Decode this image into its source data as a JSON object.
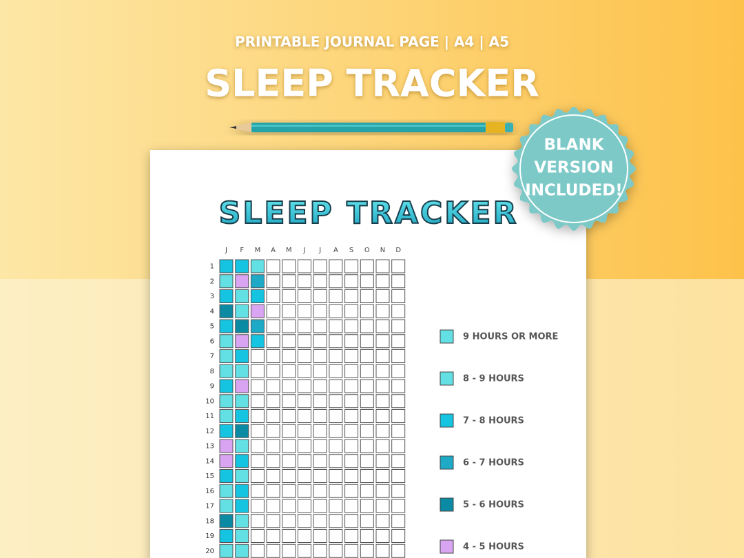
{
  "header": {
    "subtitle": "PRINTABLE JOURNAL PAGE | A4 | A5",
    "title": "SLEEP TRACKER"
  },
  "badge": {
    "lines": [
      "BLANK",
      "VERSION",
      "INCLUDED!"
    ]
  },
  "page": {
    "title": "SLEEP TRACKER",
    "months": [
      "J",
      "F",
      "M",
      "A",
      "M",
      "J",
      "J",
      "A",
      "S",
      "O",
      "N",
      "D"
    ],
    "days": [
      "1",
      "2",
      "3",
      "4",
      "5",
      "6",
      "7",
      "8",
      "9",
      "10",
      "11",
      "12",
      "13",
      "14",
      "15",
      "16",
      "17",
      "18",
      "19",
      "20"
    ],
    "legend": [
      {
        "label": "9 HOURS OR MORE",
        "color": "#62e0e4"
      },
      {
        "label": "8 - 9 HOURS",
        "color": "#62e0e4"
      },
      {
        "label": "7 - 8 HOURS",
        "color": "#14c4e0"
      },
      {
        "label": "6 - 7 HOURS",
        "color": "#1ea9c7"
      },
      {
        "label": "5 - 6 HOURS",
        "color": "#0b8aa3"
      },
      {
        "label": "4 - 5 HOURS",
        "color": "#d9a4f2"
      }
    ],
    "cells": [
      [
        "#14c4e0",
        "#14c4e0",
        "#62e0e4",
        null,
        null,
        null,
        null,
        null,
        null,
        null,
        null,
        null
      ],
      [
        "#62e0e4",
        "#d9a4f2",
        "#1ea9c7",
        null,
        null,
        null,
        null,
        null,
        null,
        null,
        null,
        null
      ],
      [
        "#14c4e0",
        "#62e0e4",
        "#14c4e0",
        null,
        null,
        null,
        null,
        null,
        null,
        null,
        null,
        null
      ],
      [
        "#0b8aa3",
        "#62e0e4",
        "#d9a4f2",
        null,
        null,
        null,
        null,
        null,
        null,
        null,
        null,
        null
      ],
      [
        "#14c4e0",
        "#0b8aa3",
        "#1ea9c7",
        null,
        null,
        null,
        null,
        null,
        null,
        null,
        null,
        null
      ],
      [
        "#62e0e4",
        "#d9a4f2",
        "#14c4e0",
        null,
        null,
        null,
        null,
        null,
        null,
        null,
        null,
        null
      ],
      [
        "#62e0e4",
        "#14c4e0",
        null,
        null,
        null,
        null,
        null,
        null,
        null,
        null,
        null,
        null
      ],
      [
        "#62e0e4",
        "#62e0e4",
        null,
        null,
        null,
        null,
        null,
        null,
        null,
        null,
        null,
        null
      ],
      [
        "#14c4e0",
        "#d9a4f2",
        null,
        null,
        null,
        null,
        null,
        null,
        null,
        null,
        null,
        null
      ],
      [
        "#62e0e4",
        "#62e0e4",
        null,
        null,
        null,
        null,
        null,
        null,
        null,
        null,
        null,
        null
      ],
      [
        "#62e0e4",
        "#14c4e0",
        null,
        null,
        null,
        null,
        null,
        null,
        null,
        null,
        null,
        null
      ],
      [
        "#14c4e0",
        "#0b8aa3",
        null,
        null,
        null,
        null,
        null,
        null,
        null,
        null,
        null,
        null
      ],
      [
        "#d9a4f2",
        "#62e0e4",
        null,
        null,
        null,
        null,
        null,
        null,
        null,
        null,
        null,
        null
      ],
      [
        "#d9a4f2",
        "#14c4e0",
        null,
        null,
        null,
        null,
        null,
        null,
        null,
        null,
        null,
        null
      ],
      [
        "#14c4e0",
        "#62e0e4",
        null,
        null,
        null,
        null,
        null,
        null,
        null,
        null,
        null,
        null
      ],
      [
        "#62e0e4",
        "#14c4e0",
        null,
        null,
        null,
        null,
        null,
        null,
        null,
        null,
        null,
        null
      ],
      [
        "#62e0e4",
        "#14c4e0",
        null,
        null,
        null,
        null,
        null,
        null,
        null,
        null,
        null,
        null
      ],
      [
        "#0b8aa3",
        "#62e0e4",
        null,
        null,
        null,
        null,
        null,
        null,
        null,
        null,
        null,
        null
      ],
      [
        "#14c4e0",
        "#62e0e4",
        null,
        null,
        null,
        null,
        null,
        null,
        null,
        null,
        null,
        null
      ],
      [
        "#62e0e4",
        "#62e0e4",
        null,
        null,
        null,
        null,
        null,
        null,
        null,
        null,
        null,
        null
      ]
    ]
  }
}
